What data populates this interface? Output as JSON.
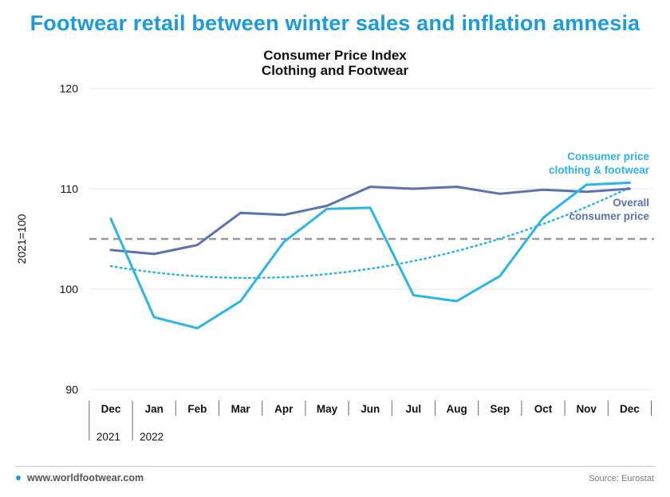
{
  "headline": "Footwear retail between winter sales and inflation amnesia",
  "footer": {
    "site": "www.worldfootwear.com",
    "source": "Source: Eurostat"
  },
  "colors": {
    "accent": "#1a9be0",
    "clothing": "#2ab4ea",
    "overall": "#5a72b0",
    "baseline": "#999999"
  },
  "chart_data": {
    "type": "line",
    "title": "Consumer Price Index",
    "subtitle": "Clothing and Footwear",
    "ylabel": "2021=100",
    "ylim": [
      90,
      120
    ],
    "yticks": [
      90,
      100,
      110,
      120
    ],
    "categories": [
      "Dec",
      "Jan",
      "Feb",
      "Mar",
      "Apr",
      "May",
      "Jun",
      "Jul",
      "Aug",
      "Sep",
      "Oct",
      "Nov",
      "Dec"
    ],
    "year_labels": [
      {
        "label": "2021",
        "index": 0
      },
      {
        "label": "2022",
        "index": 1
      }
    ],
    "reference_line": {
      "value": 105,
      "style": "dashed"
    },
    "series": [
      {
        "name": "Consumer price clothing & footwear",
        "label_lines": [
          "Consumer price",
          "clothing & footwear"
        ],
        "color": "#2ab4ea",
        "values": [
          107.0,
          97.2,
          96.1,
          98.8,
          104.7,
          108.0,
          108.1,
          99.4,
          98.8,
          101.3,
          107.1,
          110.4,
          110.6
        ]
      },
      {
        "name": "Overall consumer price",
        "label_lines": [
          "Overall",
          "consumer price"
        ],
        "color": "#5a72b0",
        "values": [
          103.9,
          103.5,
          104.4,
          107.6,
          107.4,
          108.3,
          110.2,
          110.0,
          110.2,
          109.5,
          109.9,
          109.7,
          110.0
        ]
      }
    ],
    "trendline": {
      "of_series": 0,
      "type": "polynomial",
      "style": "dotted"
    },
    "grid": true
  }
}
